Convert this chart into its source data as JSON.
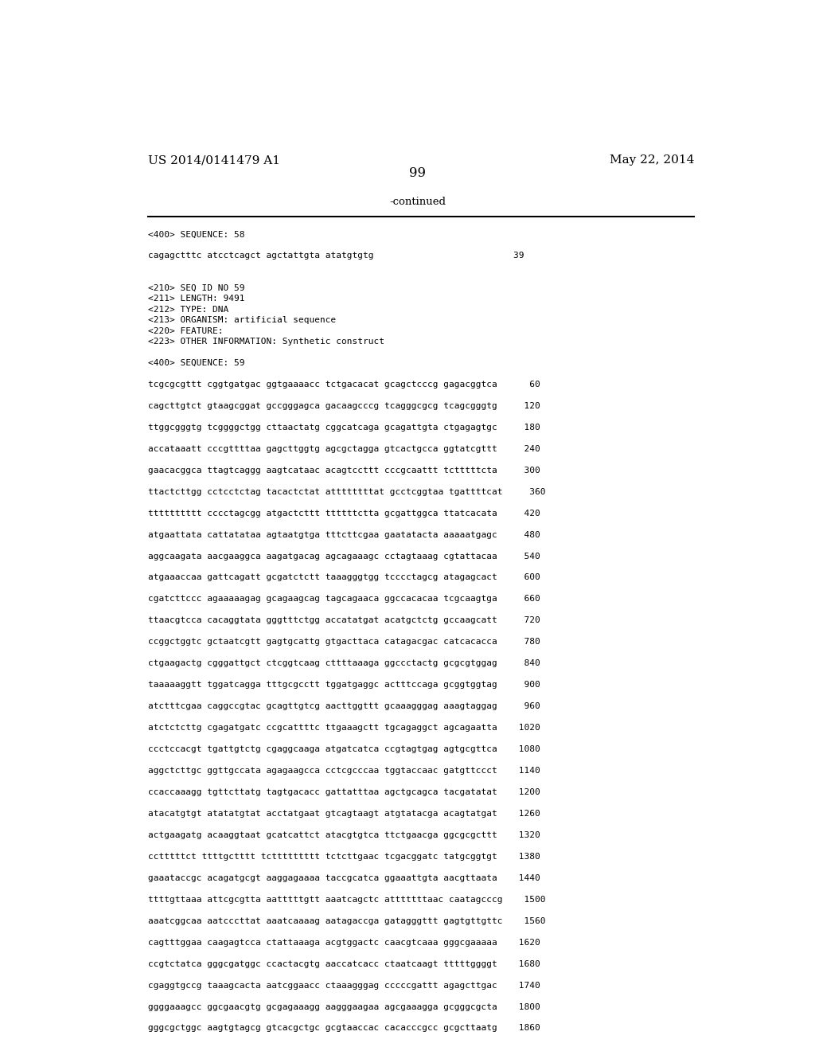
{
  "header_left": "US 2014/0141479 A1",
  "header_right": "May 22, 2014",
  "page_number": "99",
  "continued_text": "-continued",
  "background_color": "#ffffff",
  "text_color": "#000000",
  "sequence_lines": [
    "<400> SEQUENCE: 58",
    "",
    "cagagctttc atcctcagct agctattgta atatgtgtg                          39",
    "",
    "",
    "<210> SEQ ID NO 59",
    "<211> LENGTH: 9491",
    "<212> TYPE: DNA",
    "<213> ORGANISM: artificial sequence",
    "<220> FEATURE:",
    "<223> OTHER INFORMATION: Synthetic construct",
    "",
    "<400> SEQUENCE: 59",
    "",
    "tcgcgcgttt cggtgatgac ggtgaaaacc tctgacacat gcagctcccg gagacggtca      60",
    "",
    "cagcttgtct gtaagcggat gccgggagca gacaagcccg tcagggcgcg tcagcgggtg     120",
    "",
    "ttggcgggtg tcggggctgg cttaactatg cggcatcaga gcagattgta ctgagagtgc     180",
    "",
    "accataaatt cccgttttaa gagcttggtg agcgctagga gtcactgcca ggtatcgttt     240",
    "",
    "gaacacggca ttagtcaggg aagtcataac acagtccttt cccgcaattt tctttttcta     300",
    "",
    "ttactcttgg cctcctctag tacactctat attttttttat gcctcggtaa tgattttcat     360",
    "",
    "tttttttttt cccctagcgg atgactcttt ttttttctta gcgattggca ttatcacata     420",
    "",
    "atgaattata cattatataa agtaatgtga tttcttcgaa gaatatacta aaaaatgagc     480",
    "",
    "aggcaagata aacgaaggca aagatgacag agcagaaagc cctagtaaag cgtattacaa     540",
    "",
    "atgaaaccaa gattcagatt gcgatctctt taaagggtgg tcccctagcg atagagcact     600",
    "",
    "cgatcttccc agaaaaagag gcagaagcag tagcagaaca ggccacacaa tcgcaagtga     660",
    "",
    "ttaacgtcca cacaggtata gggtttctgg accatatgat acatgctctg gccaagcatt     720",
    "",
    "ccggctggtc gctaatcgtt gagtgcattg gtgacttaca catagacgac catcacacca     780",
    "",
    "ctgaagactg cgggattgct ctcggtcaag cttttaaaga ggccctactg gcgcgtggag     840",
    "",
    "taaaaaggtt tggatcagga tttgcgcctt tggatgaggc actttccaga gcggtggtag     900",
    "",
    "atctttcgaa caggccgtac gcagttgtcg aacttggttt gcaaagggag aaagtaggag     960",
    "",
    "atctctcttg cgagatgatc ccgcattttc ttgaaagctt tgcagaggct agcagaatta    1020",
    "",
    "ccctccacgt tgattgtctg cgaggcaaga atgatcatca ccgtagtgag agtgcgttca    1080",
    "",
    "aggctcttgc ggttgccata agagaagcca cctcgcccaa tggtaccaac gatgttccct    1140",
    "",
    "ccaccaaagg tgttcttatg tagtgacacc gattatttaa agctgcagca tacgatatat    1200",
    "",
    "atacatgtgt atatatgtat acctatgaat gtcagtaagt atgtatacga acagtatgat    1260",
    "",
    "actgaagatg acaaggtaat gcatcattct atacgtgtca ttctgaacga ggcgcgcttt    1320",
    "",
    "cctttttct ttttgctttt tcttttttttt tctcttgaac tcgacggatc tatgcggtgt    1380",
    "",
    "gaaataccgc acagatgcgt aaggagaaaa taccgcatca ggaaattgta aacgttaata    1440",
    "",
    "ttttgttaaa attcgcgtta aatttttgtt aaatcagctc atttttttaac caatagcccg    1500",
    "",
    "aaatcggcaa aatcccttat aaatcaaaag aatagaccga gatagggttt gagtgttgttc    1560",
    "",
    "cagtttggaa caagagtcca ctattaaaga acgtggactc caacgtcaaa gggcgaaaaa    1620",
    "",
    "ccgtctatca gggcgatggc ccactacgtg aaccatcacc ctaatcaagt tttttggggt    1680",
    "",
    "cgaggtgccg taaagcacta aatcggaacc ctaaagggag cccccgattt agagcttgac    1740",
    "",
    "ggggaaagcc ggcgaacgtg gcgagaaagg aagggaagaa agcgaaagga gcgggcgcta    1800",
    "",
    "gggcgctggc aagtgtagcg gtcacgctgc gcgtaaccac cacacccgcc gcgcttaatg    1860"
  ]
}
